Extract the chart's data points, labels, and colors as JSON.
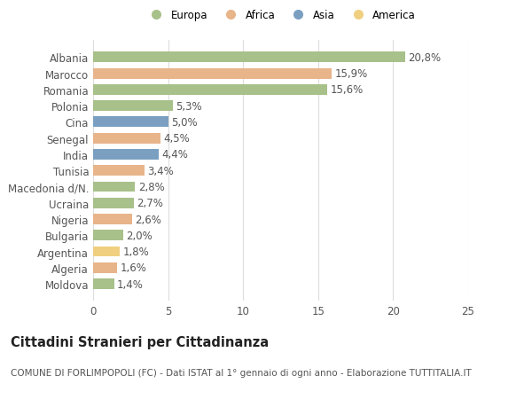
{
  "categories": [
    "Albania",
    "Marocco",
    "Romania",
    "Polonia",
    "Cina",
    "Senegal",
    "India",
    "Tunisia",
    "Macedonia d/N.",
    "Ucraina",
    "Nigeria",
    "Bulgaria",
    "Argentina",
    "Algeria",
    "Moldova"
  ],
  "values": [
    20.8,
    15.9,
    15.6,
    5.3,
    5.0,
    4.5,
    4.4,
    3.4,
    2.8,
    2.7,
    2.6,
    2.0,
    1.8,
    1.6,
    1.4
  ],
  "labels": [
    "20,8%",
    "15,9%",
    "15,6%",
    "5,3%",
    "5,0%",
    "4,5%",
    "4,4%",
    "3,4%",
    "2,8%",
    "2,7%",
    "2,6%",
    "2,0%",
    "1,8%",
    "1,6%",
    "1,4%"
  ],
  "continents": [
    "Europa",
    "Africa",
    "Europa",
    "Europa",
    "Asia",
    "Africa",
    "Asia",
    "Africa",
    "Europa",
    "Europa",
    "Africa",
    "Europa",
    "America",
    "Africa",
    "Europa"
  ],
  "continent_colors": {
    "Europa": "#a8c08a",
    "Africa": "#e8b48a",
    "Asia": "#7a9fc0",
    "America": "#f0d080"
  },
  "legend_order": [
    "Europa",
    "Africa",
    "Asia",
    "America"
  ],
  "legend_colors": [
    "#a8c08a",
    "#e8b48a",
    "#7a9fc0",
    "#f0d080"
  ],
  "xlim": [
    0,
    25
  ],
  "xticks": [
    0,
    5,
    10,
    15,
    20,
    25
  ],
  "title": "Cittadini Stranieri per Cittadinanza",
  "subtitle": "COMUNE DI FORLIMPOPOLI (FC) - Dati ISTAT al 1° gennaio di ogni anno - Elaborazione TUTTITALIA.IT",
  "bg_color": "#ffffff",
  "grid_color": "#dddddd",
  "bar_height": 0.65,
  "label_fontsize": 8.5,
  "tick_fontsize": 8.5,
  "title_fontsize": 10.5,
  "subtitle_fontsize": 7.5
}
